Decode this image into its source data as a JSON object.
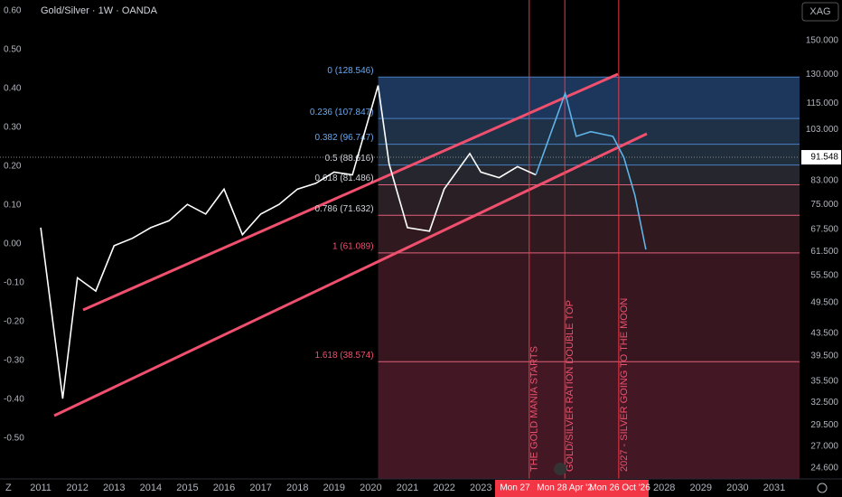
{
  "chart_data": {
    "type": "line",
    "title": "Gold/Silver · 1W · OANDA",
    "symbol": "XAG",
    "corner_label": "Z",
    "x": [
      2011.0,
      2011.6,
      2012.0,
      2012.5,
      2013.0,
      2013.5,
      2014.0,
      2014.5,
      2015.0,
      2015.5,
      2016.0,
      2016.5,
      2017.0,
      2017.5,
      2018.0,
      2018.5,
      2019.0,
      2019.5,
      2020.2,
      2020.5,
      2021.0,
      2021.6,
      2022.0,
      2022.7,
      2023.0,
      2023.5,
      2024.0,
      2024.5,
      2025.3,
      2025.6,
      2026.0,
      2026.6,
      2026.9,
      2027.2,
      2027.5
    ],
    "series": [
      {
        "color": "#ffffff",
        "axis": "y2",
        "values": [
          68,
          33,
          55,
          52,
          63,
          65,
          68,
          70,
          75,
          72,
          80,
          66,
          72,
          75,
          80,
          82,
          86,
          85,
          124,
          89,
          68,
          67,
          80,
          93,
          86,
          84,
          88,
          85,
          null,
          null,
          null,
          null,
          null,
          null,
          null
        ]
      },
      {
        "color": "#5fb3e6",
        "axis": "y2",
        "values": [
          null,
          null,
          null,
          null,
          null,
          null,
          null,
          null,
          null,
          null,
          null,
          null,
          null,
          null,
          null,
          null,
          null,
          null,
          null,
          null,
          null,
          null,
          null,
          null,
          null,
          null,
          null,
          85,
          120,
          100,
          102,
          100,
          91.5,
          78,
          62
        ]
      }
    ],
    "xlim": [
      2009.89,
      2031.69
    ],
    "xticks": [
      2011,
      2012,
      2013,
      2014,
      2015,
      2016,
      2017,
      2018,
      2019,
      2020,
      2021,
      2022,
      2023,
      2028,
      2029,
      2030,
      2031
    ],
    "ylim": [
      -0.605,
      0.628
    ],
    "yticks": [
      {
        "value": 0.6,
        "label": "0.60"
      },
      {
        "value": 0.5,
        "label": "0.50"
      },
      {
        "value": 0.4,
        "label": "0.40"
      },
      {
        "value": 0.3,
        "label": "0.30"
      },
      {
        "value": 0.2,
        "label": "0.20"
      },
      {
        "value": 0.1,
        "label": "0.10"
      },
      {
        "value": 0,
        "label": "0.00"
      },
      {
        "value": -0.1,
        "label": "-0.10"
      },
      {
        "value": -0.2,
        "label": "-0.20"
      },
      {
        "value": -0.3,
        "label": "-0.30"
      },
      {
        "value": -0.4,
        "label": "-0.40"
      },
      {
        "value": -0.5,
        "label": "-0.50"
      }
    ],
    "y2lim": [
      23.5,
      178
    ],
    "y2_log": true,
    "y2ticks": [
      {
        "value": 150,
        "label": "150.000"
      },
      {
        "value": 130,
        "label": "130.000"
      },
      {
        "value": 115,
        "label": "115.000"
      },
      {
        "value": 103,
        "label": "103.000"
      },
      {
        "value": 83,
        "label": "83.000"
      },
      {
        "value": 75,
        "label": "75.000"
      },
      {
        "value": 67.5,
        "label": "67.500"
      },
      {
        "value": 61.5,
        "label": "61.500"
      },
      {
        "value": 55.5,
        "label": "55.500"
      },
      {
        "value": 49.5,
        "label": "49.500"
      },
      {
        "value": 43.5,
        "label": "43.500"
      },
      {
        "value": 39.5,
        "label": "39.500"
      },
      {
        "value": 35.5,
        "label": "35.500"
      },
      {
        "value": 32.5,
        "label": "32.500"
      },
      {
        "value": 29.5,
        "label": "29.500"
      },
      {
        "value": 27,
        "label": "27.000"
      },
      {
        "value": 24.6,
        "label": "24.600"
      }
    ],
    "last_price": 91.548,
    "fib_start": 2020.2,
    "fib_levels": [
      {
        "label": "0 (128.546)",
        "value": 128.546,
        "color": "#1f3c66"
      },
      {
        "label": "0.236 (107.847)",
        "value": 107.847,
        "color": "#22364f"
      },
      {
        "label": "0.382 (96.747)",
        "value": 96.747,
        "color": "#243240"
      },
      {
        "label": "0.5 (88.616)",
        "value": 88.616,
        "color": "#2a2a33"
      },
      {
        "label": "0.618 (81.486)",
        "value": 81.486,
        "color": "#2e2228"
      },
      {
        "label": "0.786 (71.632)",
        "value": 71.632,
        "color": "#361c24"
      },
      {
        "label": "1 (61.089)",
        "value": 61.089,
        "color": "#3d1822"
      },
      {
        "label": "1.618 (38.574)",
        "value": 38.574,
        "color": "#4a1a28"
      }
    ],
    "markers": [
      {
        "x": 2024.32,
        "text": "THE GOLD MANIA STARTS"
      },
      {
        "x": 2025.29,
        "text": "GOLD/SILVER RATION DOUBLE TOP"
      },
      {
        "x": 2026.76,
        "text": "2027 - SILVER GOING TO THE MOON"
      }
    ],
    "crosshair_labels": [
      "Mon 27",
      "Mon 28 Apr '2",
      "Mon 26 Oct '26"
    ]
  }
}
